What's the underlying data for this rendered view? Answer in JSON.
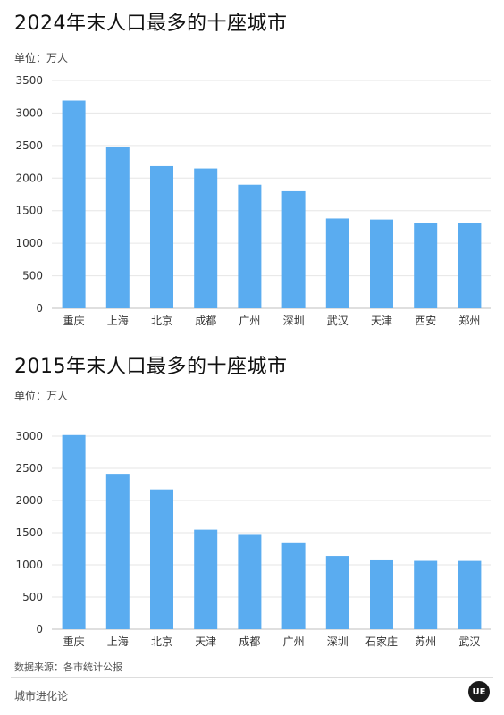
{
  "chart_data": [
    {
      "type": "bar",
      "title": "2024年末人口最多的十座城市",
      "unit_label": "单位：万人",
      "categories": [
        "重庆",
        "上海",
        "北京",
        "成都",
        "广州",
        "深圳",
        "武汉",
        "天津",
        "西安",
        "郑州"
      ],
      "values": [
        3191,
        2480,
        2183,
        2147,
        1898,
        1799,
        1380,
        1364,
        1313,
        1308
      ],
      "yticks": [
        0,
        500,
        1000,
        1500,
        2000,
        2500,
        3000,
        3500
      ],
      "ylim": [
        0,
        3500
      ],
      "grid": true,
      "bar_color": "#5aacf0"
    },
    {
      "type": "bar",
      "title": "2015年末人口最多的十座城市",
      "unit_label": "单位：万人",
      "categories": [
        "重庆",
        "上海",
        "北京",
        "天津",
        "成都",
        "广州",
        "深圳",
        "石家庄",
        "苏州",
        "武汉"
      ],
      "values": [
        3017,
        2415,
        2171,
        1547,
        1466,
        1350,
        1138,
        1070,
        1062,
        1061
      ],
      "yticks": [
        0,
        500,
        1000,
        1500,
        2000,
        2500,
        3000
      ],
      "ylim": [
        0,
        3000
      ],
      "grid": true,
      "bar_color": "#5aacf0"
    }
  ],
  "footer": {
    "source": "数据来源：各市统计公报",
    "brand": "城市进化论",
    "logo_text": "UE"
  }
}
